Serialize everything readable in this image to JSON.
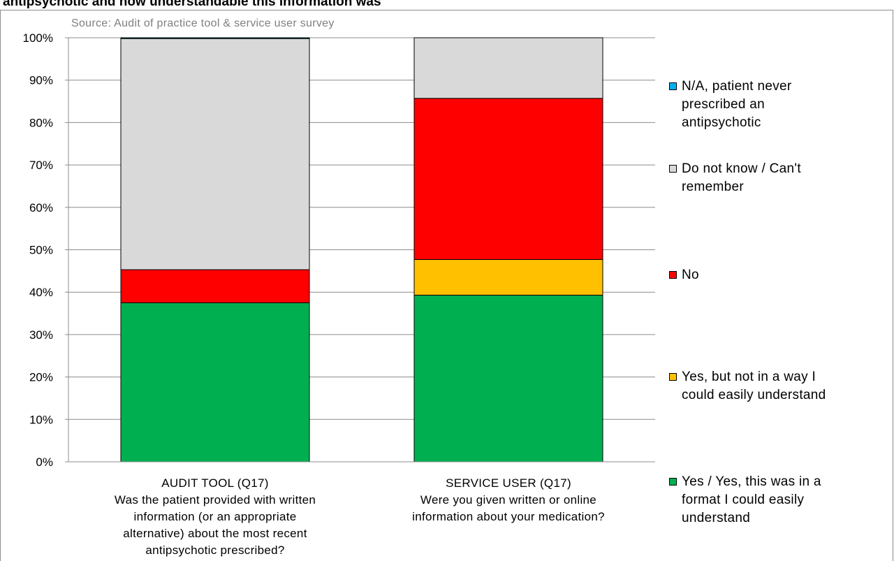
{
  "title": "antipsychotic and how understandable this information was",
  "chart_data": {
    "type": "bar",
    "stacked": true,
    "source": "Source: Audit of practice tool & service user survey",
    "y_ticks": [
      "0%",
      "10%",
      "20%",
      "30%",
      "40%",
      "50%",
      "60%",
      "70%",
      "80%",
      "90%",
      "100%"
    ],
    "ylim": [
      0,
      100
    ],
    "categories": [
      {
        "lines": [
          "AUDIT TOOL (Q17)",
          "Was the patient provided with written",
          "information (or an appropriate",
          "alternative) about the most recent",
          "antipsychotic prescribed?"
        ]
      },
      {
        "lines": [
          "SERVICE USER (Q17)",
          "Were you given written or online",
          "information about your medication?"
        ]
      }
    ],
    "series": [
      {
        "name": "Yes / Yes, this was in a format I could easily understand",
        "color": "#00b050",
        "values": [
          37.5,
          39.3
        ]
      },
      {
        "name": "Yes, but not in a way I could easily understand",
        "color": "#ffc000",
        "values": [
          0,
          8.4
        ]
      },
      {
        "name": "No",
        "color": "#ff0000",
        "values": [
          7.8,
          38.0
        ]
      },
      {
        "name": "Do not know / Can't remember",
        "color": "#d9d9d9",
        "values": [
          54.5,
          14.3
        ]
      },
      {
        "name": "N/A, patient never prescribed an antipsychotic",
        "color": "#00b0f0",
        "values": [
          0.2,
          0
        ]
      }
    ],
    "legend": {
      "placement": "right",
      "items": [
        {
          "lines": [
            "N/A, patient never",
            "prescribed an",
            "antipsychotic"
          ],
          "color": "#00b0f0"
        },
        {
          "lines": [
            "Do not know / Can't",
            "remember"
          ],
          "color": "#d9d9d9"
        },
        {
          "lines": [
            "No"
          ],
          "color": "#ff0000"
        },
        {
          "lines": [
            "Yes, but not in a way I",
            "could easily understand"
          ],
          "color": "#ffc000"
        },
        {
          "lines": [
            "Yes / Yes, this was in a",
            "format I could easily",
            "understand"
          ],
          "color": "#00b050"
        }
      ]
    },
    "grid": true
  }
}
